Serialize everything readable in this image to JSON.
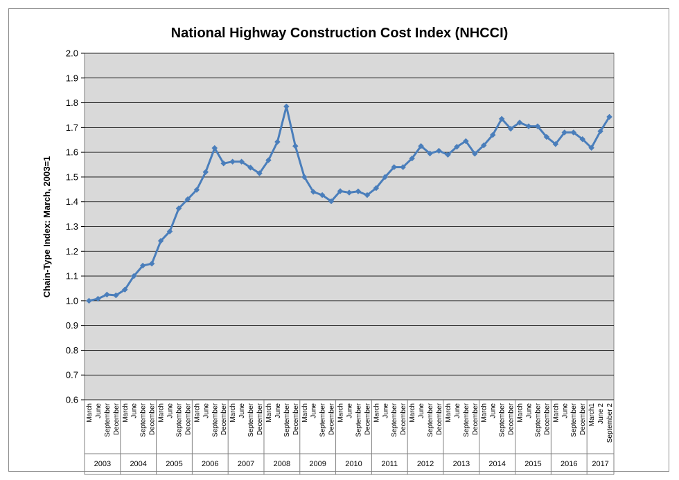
{
  "chart_data": {
    "type": "line",
    "title": "National Highway Construction Cost Index (NHCCI)",
    "ylabel": "Chain-Type Index: March,  2003=1",
    "xlabel": "",
    "ylim": [
      0.6,
      2.0
    ],
    "yticks": [
      "0.6",
      "0.7",
      "0.8",
      "0.9",
      "1.0",
      "1.1",
      "1.2",
      "1.3",
      "1.4",
      "1.5",
      "1.6",
      "1.7",
      "1.8",
      "1.9",
      "2.0"
    ],
    "grid": true,
    "legend": "none",
    "colors": {
      "line": "#4a7ebb",
      "plot_bg": "#d9d9d9",
      "grid": "#000000"
    },
    "groups": [
      {
        "year": "2003",
        "quarters": [
          "March",
          "June",
          "September",
          "December"
        ]
      },
      {
        "year": "2004",
        "quarters": [
          "March",
          "June",
          "September",
          "December"
        ]
      },
      {
        "year": "2005",
        "quarters": [
          "March",
          "June",
          "September",
          "December"
        ]
      },
      {
        "year": "2006",
        "quarters": [
          "March",
          "June",
          "September",
          "December"
        ]
      },
      {
        "year": "2007",
        "quarters": [
          "March",
          "June",
          "September",
          "December"
        ]
      },
      {
        "year": "2008",
        "quarters": [
          "March",
          "June",
          "September",
          "December"
        ]
      },
      {
        "year": "2009",
        "quarters": [
          "March",
          "June",
          "September",
          "December"
        ]
      },
      {
        "year": "2010",
        "quarters": [
          "March",
          "June",
          "September",
          "December"
        ]
      },
      {
        "year": "2011",
        "quarters": [
          "March",
          "June",
          "September",
          "December"
        ]
      },
      {
        "year": "2012",
        "quarters": [
          "March",
          "June",
          "September",
          "December"
        ]
      },
      {
        "year": "2013",
        "quarters": [
          "March",
          "June",
          "September",
          "December"
        ]
      },
      {
        "year": "2014",
        "quarters": [
          "March",
          "June",
          "September",
          "December"
        ]
      },
      {
        "year": "2015",
        "quarters": [
          "March",
          "June",
          "September",
          "December"
        ]
      },
      {
        "year": "2016",
        "quarters": [
          "March",
          "June",
          "September",
          "December"
        ]
      },
      {
        "year": "2017",
        "quarters": [
          "March1",
          "June 2",
          "September 2"
        ]
      }
    ],
    "series": [
      {
        "values": [
          1.0,
          1.008,
          1.025,
          1.022,
          1.045,
          1.1,
          1.142,
          1.15,
          1.242,
          1.28,
          1.373,
          1.41,
          1.448,
          1.52,
          1.617,
          1.555,
          1.562,
          1.562,
          1.538,
          1.515,
          1.568,
          1.642,
          1.785,
          1.625,
          1.5,
          1.44,
          1.427,
          1.402,
          1.443,
          1.437,
          1.442,
          1.427,
          1.455,
          1.5,
          1.54,
          1.54,
          1.575,
          1.625,
          1.595,
          1.606,
          1.59,
          1.622,
          1.645,
          1.594,
          1.628,
          1.67,
          1.735,
          1.695,
          1.72,
          1.705,
          1.705,
          1.662,
          1.633,
          1.68,
          1.68,
          1.653,
          1.618,
          1.685,
          1.743
        ]
      }
    ]
  }
}
